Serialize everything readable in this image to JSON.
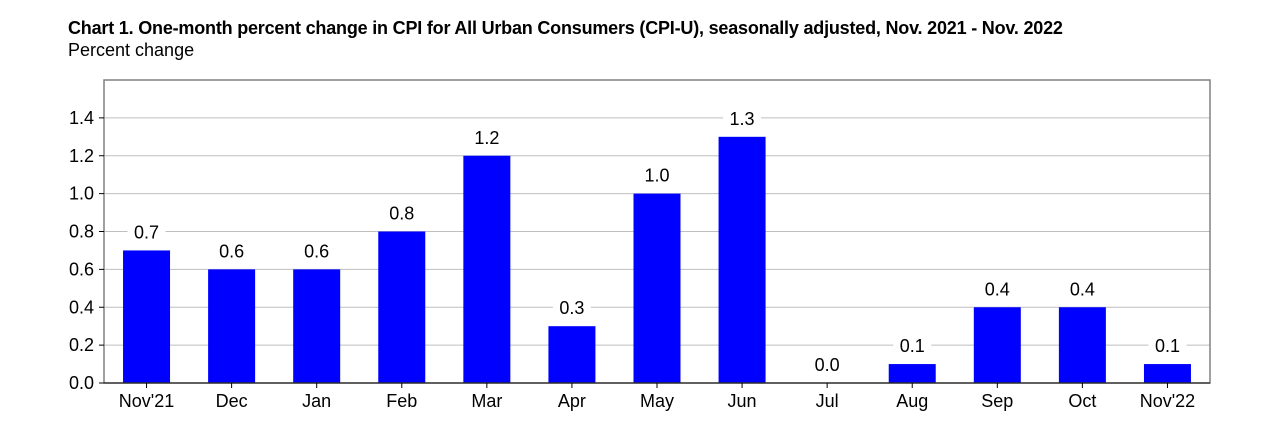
{
  "chart_data": {
    "type": "bar",
    "title": "Chart 1. One-month percent change in CPI for All Urban Consumers (CPI-U), seasonally adjusted, Nov. 2021 - Nov. 2022",
    "ylabel": "Percent change",
    "xlabel": "",
    "categories": [
      "Nov'21",
      "Dec",
      "Jan",
      "Feb",
      "Mar",
      "Apr",
      "May",
      "Jun",
      "Jul",
      "Aug",
      "Sep",
      "Oct",
      "Nov'22"
    ],
    "values": [
      0.7,
      0.6,
      0.6,
      0.8,
      1.2,
      0.3,
      1.0,
      1.3,
      0.0,
      0.1,
      0.4,
      0.4,
      0.1
    ],
    "data_labels": [
      "0.7",
      "0.6",
      "0.6",
      "0.8",
      "1.2",
      "0.3",
      "1.0",
      "1.3",
      "0.0",
      "0.1",
      "0.4",
      "0.4",
      "0.1"
    ],
    "ylim": [
      0,
      1.6
    ],
    "yticks": [
      0.0,
      0.2,
      0.4,
      0.6,
      0.8,
      1.0,
      1.2,
      1.4
    ],
    "ytick_labels": [
      "0.0",
      "0.2",
      "0.4",
      "0.6",
      "0.8",
      "1.0",
      "1.2",
      "1.4"
    ],
    "grid": true,
    "legend": "none",
    "bar_color": "#0000ff",
    "grid_color": "#bfbfbf",
    "frame_color": "#808080"
  }
}
